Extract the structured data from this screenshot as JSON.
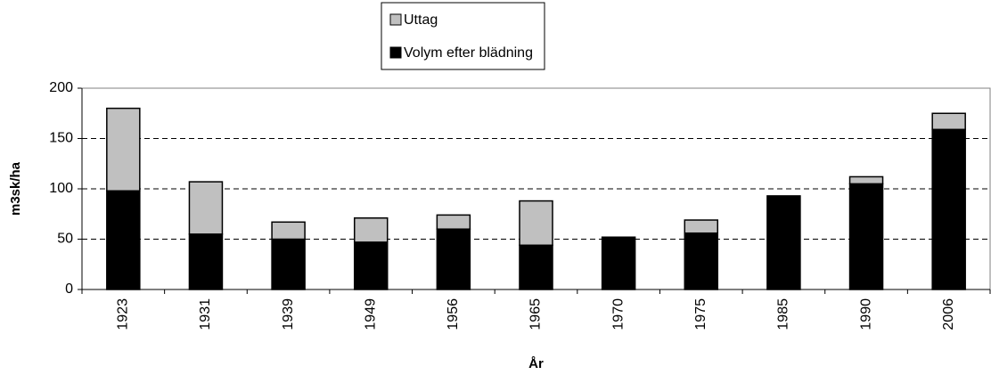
{
  "chart_data": {
    "type": "bar",
    "stacked": true,
    "xlabel": "År",
    "ylabel": "m3sk/ha",
    "categories": [
      "1923",
      "1931",
      "1939",
      "1949",
      "1956",
      "1965",
      "1970",
      "1975",
      "1985",
      "1990",
      "2006"
    ],
    "series": [
      {
        "name": "Volym efter blädning",
        "color": "#000000",
        "values": [
          98,
          55,
          50,
          47,
          60,
          44,
          52,
          56,
          93,
          105,
          159
        ]
      },
      {
        "name": "Uttag",
        "color": "#c0c0c0",
        "values": [
          82,
          52,
          17,
          24,
          14,
          44,
          0,
          13,
          0,
          7,
          16
        ]
      }
    ],
    "ylim": [
      0,
      200
    ],
    "yticks": [
      0,
      50,
      100,
      150,
      200
    ],
    "grid": true
  }
}
